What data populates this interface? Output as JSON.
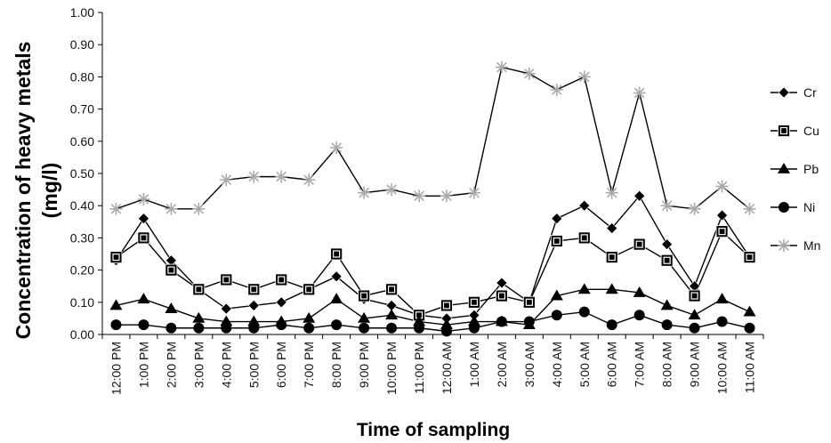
{
  "chart_data": {
    "type": "line",
    "xlabel": "Time of sampling",
    "ylabel_line1": "Concentration of heavy metals",
    "ylabel_line2": "(mg/l)",
    "ylim": [
      0,
      1.0
    ],
    "yticks": [
      "0.00",
      "0.10",
      "0.20",
      "0.30",
      "0.40",
      "0.50",
      "0.60",
      "0.70",
      "0.80",
      "0.90",
      "1.00"
    ],
    "grid": false,
    "legend_position": "right",
    "categories": [
      "12:00 PM",
      "1:00 PM",
      "2:00 PM",
      "3:00 PM",
      "4:00 PM",
      "5:00 PM",
      "6:00 PM",
      "7:00 PM",
      "8:00 PM",
      "9:00 PM",
      "10:00 PM",
      "11:00 PM",
      "12:00 AM",
      "1:00 AM",
      "2:00 AM",
      "3:00 AM",
      "4:00 AM",
      "5:00 AM",
      "6:00 AM",
      "7:00 AM",
      "8:00 AM",
      "9:00 AM",
      "10:00 AM",
      "11:00 AM"
    ],
    "series": [
      {
        "name": "Cr",
        "marker": "diamond",
        "color": "#000000",
        "values": [
          0.23,
          0.36,
          0.23,
          0.14,
          0.08,
          0.09,
          0.1,
          0.14,
          0.18,
          0.11,
          0.09,
          0.06,
          0.05,
          0.06,
          0.16,
          0.1,
          0.36,
          0.4,
          0.33,
          0.43,
          0.28,
          0.15,
          0.37,
          0.24
        ]
      },
      {
        "name": "Cu",
        "marker": "square",
        "color": "#000000",
        "values": [
          0.24,
          0.3,
          0.2,
          0.14,
          0.17,
          0.14,
          0.17,
          0.14,
          0.25,
          0.12,
          0.14,
          0.06,
          0.09,
          0.1,
          0.12,
          0.1,
          0.29,
          0.3,
          0.24,
          0.28,
          0.23,
          0.12,
          0.32,
          0.24
        ]
      },
      {
        "name": "Pb",
        "marker": "triangle",
        "color": "#000000",
        "values": [
          0.09,
          0.11,
          0.08,
          0.05,
          0.04,
          0.04,
          0.04,
          0.05,
          0.11,
          0.05,
          0.06,
          0.04,
          0.03,
          0.04,
          0.04,
          0.03,
          0.12,
          0.14,
          0.14,
          0.13,
          0.09,
          0.06,
          0.11,
          0.07
        ]
      },
      {
        "name": "Ni",
        "marker": "circle",
        "color": "#000000",
        "values": [
          0.03,
          0.03,
          0.02,
          0.02,
          0.02,
          0.02,
          0.03,
          0.02,
          0.03,
          0.02,
          0.02,
          0.02,
          0.01,
          0.02,
          0.04,
          0.04,
          0.06,
          0.07,
          0.03,
          0.06,
          0.03,
          0.02,
          0.04,
          0.02
        ]
      },
      {
        "name": "Mn",
        "marker": "star",
        "color": "#aaaaaa",
        "line_color": "#000000",
        "values": [
          0.39,
          0.42,
          0.39,
          0.39,
          0.48,
          0.49,
          0.49,
          0.48,
          0.58,
          0.44,
          0.45,
          0.43,
          0.43,
          0.44,
          0.83,
          0.81,
          0.76,
          0.8,
          0.44,
          0.75,
          0.4,
          0.39,
          0.46,
          0.39
        ]
      }
    ]
  }
}
